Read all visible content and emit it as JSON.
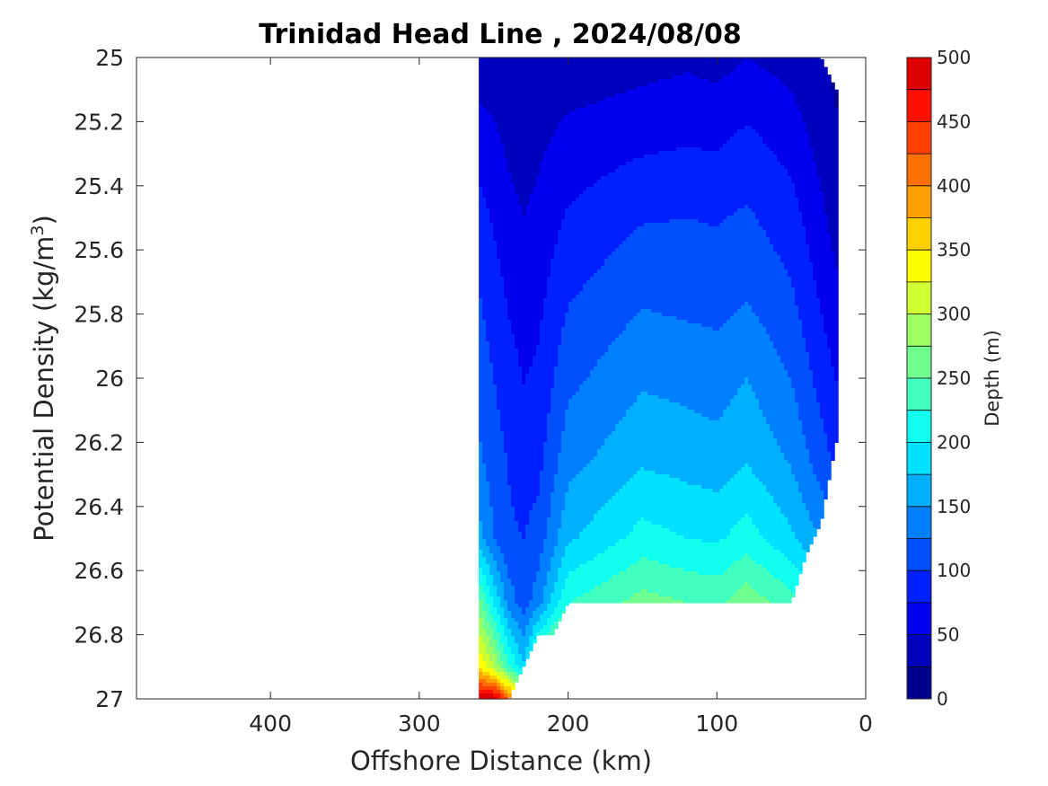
{
  "chart_data": {
    "type": "contour",
    "title": "Trinidad Head Line , 2024/08/08",
    "xlabel": "Offshore Distance (km)",
    "ylabel_main": "Potential Density (kg/m",
    "ylabel_sup": "3",
    "ylabel_tail": ")",
    "xlim": [
      490,
      0
    ],
    "x_reversed": true,
    "ylim": [
      25,
      27
    ],
    "y_reversed": true,
    "x_ticks": [
      400,
      300,
      200,
      100,
      0
    ],
    "x_tick_labels": [
      "400",
      "300",
      "200",
      "100",
      "0"
    ],
    "y_ticks": [
      25,
      25.2,
      25.4,
      25.6,
      25.8,
      26,
      26.2,
      26.4,
      26.6,
      26.8,
      27
    ],
    "y_tick_labels": [
      "25",
      "25.2",
      "25.4",
      "25.6",
      "25.8",
      "26",
      "26.2",
      "26.4",
      "26.6",
      "26.8",
      "27"
    ],
    "colorbar": {
      "label": "Depth (m)",
      "range": [
        0,
        500
      ],
      "step": 25,
      "ticks": [
        0,
        50,
        100,
        150,
        200,
        250,
        300,
        350,
        400,
        450,
        500
      ],
      "tick_labels": [
        "0",
        "50",
        "100",
        "150",
        "200",
        "250",
        "300",
        "350",
        "400",
        "450",
        "500"
      ],
      "colormap": "jet",
      "colors": [
        "#00008f",
        "#0000bf",
        "#0000ef",
        "#0020ff",
        "#0050ff",
        "#0080ff",
        "#00b0ff",
        "#00e0ff",
        "#10ffef",
        "#40ffbf",
        "#70ff8f",
        "#9fff60",
        "#cfff30",
        "#ffff00",
        "#ffcf00",
        "#ff9f00",
        "#ff7000",
        "#ff4000",
        "#ff1000",
        "#df0000"
      ]
    },
    "stations_km": [
      260,
      250,
      240,
      230,
      220,
      210,
      200,
      190,
      180,
      170,
      160,
      150,
      140,
      130,
      120,
      110,
      100,
      90,
      80,
      70,
      60,
      50,
      40,
      30,
      20
    ],
    "sigma_max": [
      27.0,
      27.0,
      27.0,
      26.9,
      26.8,
      26.8,
      26.7,
      26.7,
      26.7,
      26.7,
      26.7,
      26.7,
      26.7,
      26.7,
      26.7,
      26.7,
      26.7,
      26.7,
      26.7,
      26.7,
      26.7,
      26.7,
      26.55,
      26.45,
      26.2
    ],
    "sigma_min": [
      25.0,
      25.0,
      25.0,
      25.0,
      25.0,
      25.0,
      25.0,
      25.0,
      25.0,
      25.0,
      25.0,
      25.0,
      25.0,
      25.0,
      25.0,
      25.0,
      25.0,
      25.0,
      25.0,
      25.0,
      25.0,
      25.0,
      25.0,
      25.0,
      25.1
    ],
    "isopycnal_depths": [
      {
        "km": 260,
        "depth_m": [
          38,
          60,
          86,
          102,
          114,
          130,
          160,
          260,
          350,
          500
        ]
      },
      {
        "km": 250,
        "depth_m": [
          36,
          54,
          72,
          88,
          100,
          112,
          126,
          200,
          300,
          500
        ]
      },
      {
        "km": 240,
        "depth_m": [
          30,
          45,
          58,
          72,
          86,
          98,
          105,
          140,
          230,
          420
        ]
      },
      {
        "km": 230,
        "depth_m": [
          25,
          38,
          50,
          62,
          74,
          88,
          100,
          112,
          180,
          330
        ]
      },
      {
        "km": 220,
        "depth_m": [
          28,
          44,
          57,
          68,
          80,
          92,
          110,
          140,
          270,
          480
        ]
      },
      {
        "km": 200,
        "depth_m": [
          32,
          58,
          78,
          98,
          118,
          140,
          170,
          225,
          330,
          480
        ]
      },
      {
        "km": 150,
        "depth_m": [
          40,
          68,
          98,
          122,
          146,
          170,
          210,
          260,
          340,
          460
        ]
      },
      {
        "km": 120,
        "depth_m": [
          45,
          72,
          100,
          118,
          142,
          164,
          200,
          250,
          330,
          460
        ]
      },
      {
        "km": 100,
        "depth_m": [
          40,
          70,
          98,
          116,
          138,
          160,
          196,
          244,
          322,
          450
        ]
      },
      {
        "km": 80,
        "depth_m": [
          50,
          80,
          104,
          124,
          150,
          172,
          212,
          266,
          350,
          460
        ]
      },
      {
        "km": 50,
        "depth_m": [
          40,
          64,
          86,
          104,
          124,
          146,
          180,
          236,
          340,
          470
        ]
      },
      {
        "km": 20,
        "depth_m": [
          20,
          28,
          40,
          56,
          74,
          94,
          130,
          190,
          260,
          360
        ]
      }
    ]
  }
}
